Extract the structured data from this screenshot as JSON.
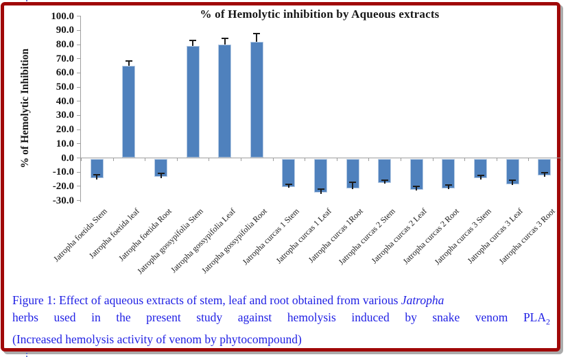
{
  "figure": {
    "border_color": "#a00808",
    "caption": {
      "color": "#1e1ee4",
      "line1_pre": "Figure 1: Effect of aqueous extracts of stem, leaf and root obtained from various ",
      "line1_italic": "Jatropha",
      "line2_main": "herbs used in the present study against hemolysis induced by snake venom PLA",
      "line2_sub": "2",
      "line3": "(Increased hemolysis activity of venom by phytocompound)"
    }
  },
  "chart_data": {
    "type": "bar",
    "title": "% of Hemolytic inhibition by Aqueous extracts",
    "xlabel": "",
    "ylabel": "% of Hemolytic Inhibition",
    "ylim": [
      -30,
      100
    ],
    "ytick_step": 10,
    "yticks": [
      "100.0",
      "90.0",
      "80.0",
      "70.0",
      "60.0",
      "50.0",
      "40.0",
      "30.0",
      "20.0",
      "10.0",
      "0.0",
      "-10.0",
      "-20.0",
      "-30.0"
    ],
    "grid": false,
    "legend": "none",
    "bar_color": "#4f81bd",
    "bar_border_color": "#b8cce4",
    "error_bar_color": "#1c1c1c",
    "categories": [
      "Jatropha foetida Stem",
      "Jatropha foetida leaf",
      "Jatropha foetida Root",
      "Jatropha gossypifolia Stem",
      "Jatropha gossypifolia Leaf",
      "Jatropha gossypifolia Root",
      "Jatropha curcas 1 Stem",
      "Jatropha curcas 1 Leaf",
      "Jatropha curcas 1Root",
      "Jatropha curcas 2 Stem",
      "Jatropha curcas 2 Leaf",
      "Jatropha curcas 2 Root",
      "Jatropha curcas 3 Stem",
      "Jatropha curcas 3 Leaf",
      "Jatropha curcas 3 Root"
    ],
    "values": [
      -14,
      65,
      -13,
      79,
      80,
      82,
      -20,
      -24,
      -21,
      -17,
      -22,
      -21,
      -14,
      -18,
      -12
    ],
    "errors": [
      2.5,
      3.5,
      2.5,
      4,
      4.5,
      6,
      2,
      2.5,
      4.5,
      2,
      2.5,
      2.5,
      2,
      3,
      2
    ]
  }
}
